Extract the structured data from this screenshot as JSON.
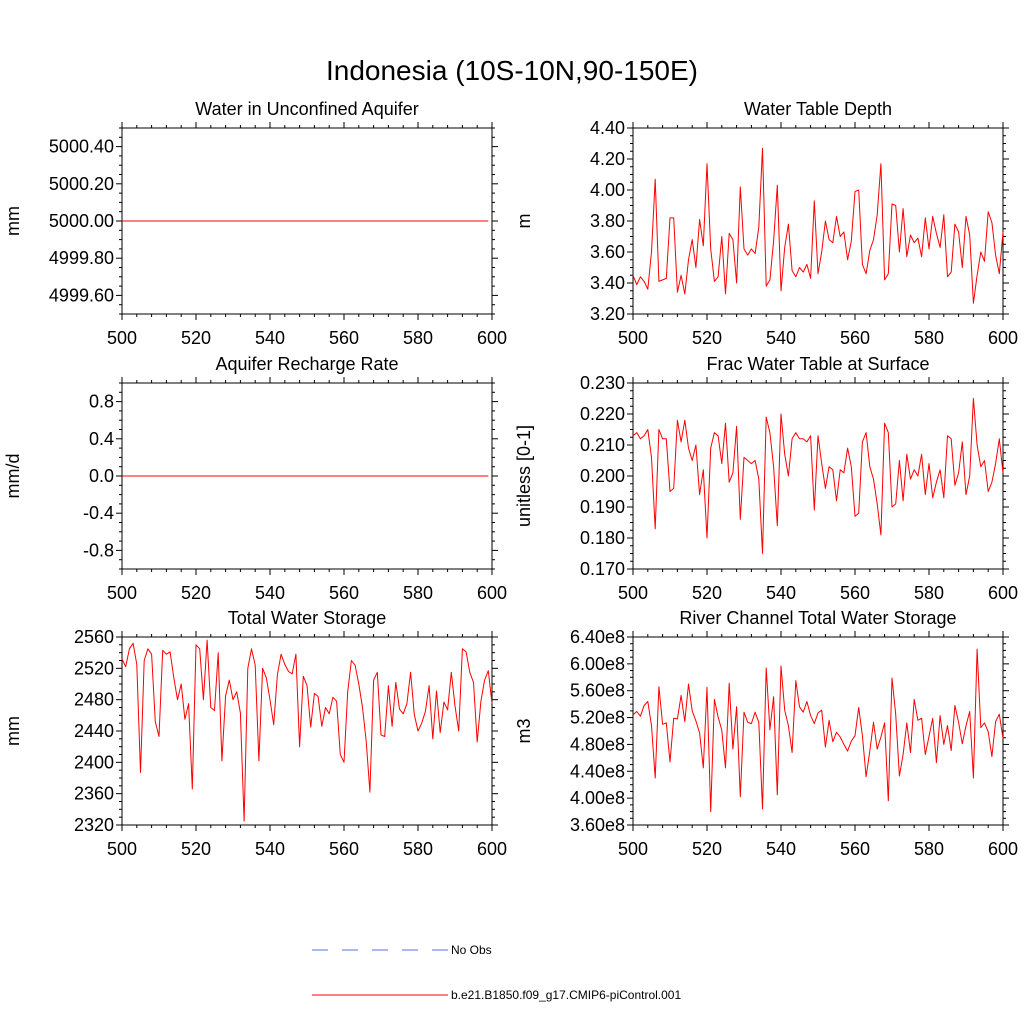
{
  "page_title": "Indonesia (10S-10N,90-150E)",
  "legend": [
    {
      "label": "No Obs",
      "color": "#5b6fd6",
      "style": "dashed"
    },
    {
      "label": "b.e21.B1850.f09_g17.CMIP6-piControl.001",
      "color": "#ff0000",
      "style": "solid"
    }
  ],
  "chart_data": [
    {
      "type": "line",
      "title": "Water in Unconfined Aquifer",
      "ylabel": "mm",
      "xlim": [
        500,
        600
      ],
      "ylim": [
        4999.5,
        5000.5
      ],
      "xticks": [
        500,
        520,
        540,
        560,
        580,
        600
      ],
      "yticks": [
        4999.6,
        4999.8,
        5000.0,
        5000.2,
        5000.4
      ],
      "ytick_labels": [
        "4999.60",
        "4999.80",
        "5000.00",
        "5000.20",
        "5000.40"
      ],
      "series": [
        {
          "name": "b.e21.B1850.f09_g17.CMIP6-piControl.001",
          "x_start": 500,
          "x_step": 1,
          "values": [
            5000,
            5000,
            5000,
            5000,
            5000,
            5000,
            5000,
            5000,
            5000,
            5000,
            5000,
            5000,
            5000,
            5000,
            5000,
            5000,
            5000,
            5000,
            5000,
            5000,
            5000,
            5000,
            5000,
            5000,
            5000,
            5000,
            5000,
            5000,
            5000,
            5000,
            5000,
            5000,
            5000,
            5000,
            5000,
            5000,
            5000,
            5000,
            5000,
            5000,
            5000,
            5000,
            5000,
            5000,
            5000,
            5000,
            5000,
            5000,
            5000,
            5000,
            5000,
            5000,
            5000,
            5000,
            5000,
            5000,
            5000,
            5000,
            5000,
            5000,
            5000,
            5000,
            5000,
            5000,
            5000,
            5000,
            5000,
            5000,
            5000,
            5000,
            5000,
            5000,
            5000,
            5000,
            5000,
            5000,
            5000,
            5000,
            5000,
            5000,
            5000,
            5000,
            5000,
            5000,
            5000,
            5000,
            5000,
            5000,
            5000,
            5000,
            5000,
            5000,
            5000,
            5000,
            5000,
            5000,
            5000,
            5000,
            5000,
            5000
          ]
        }
      ]
    },
    {
      "type": "line",
      "title": "Water Table Depth",
      "ylabel": "m",
      "xlim": [
        500,
        600
      ],
      "ylim": [
        3.2,
        4.4
      ],
      "xticks": [
        500,
        520,
        540,
        560,
        580,
        600
      ],
      "yticks": [
        3.2,
        3.4,
        3.6,
        3.8,
        4.0,
        4.2,
        4.4
      ],
      "ytick_labels": [
        "3.20",
        "3.40",
        "3.60",
        "3.80",
        "4.00",
        "4.20",
        "4.40"
      ],
      "series": [
        {
          "name": "b.e21.B1850.f09_g17.CMIP6-piControl.001",
          "x_start": 500,
          "x_step": 1,
          "values": [
            3.45,
            3.39,
            3.44,
            3.41,
            3.36,
            3.6,
            4.07,
            3.41,
            3.42,
            3.43,
            3.82,
            3.82,
            3.34,
            3.45,
            3.33,
            3.55,
            3.68,
            3.5,
            3.81,
            3.64,
            4.17,
            3.62,
            3.41,
            3.44,
            3.7,
            3.33,
            3.72,
            3.68,
            3.4,
            4.02,
            3.62,
            3.58,
            3.62,
            3.59,
            3.76,
            4.27,
            3.38,
            3.42,
            3.67,
            4.03,
            3.35,
            3.63,
            3.78,
            3.48,
            3.44,
            3.5,
            3.47,
            3.52,
            3.43,
            3.93,
            3.46,
            3.6,
            3.8,
            3.68,
            3.66,
            3.83,
            3.7,
            3.73,
            3.55,
            3.67,
            3.99,
            4.0,
            3.52,
            3.46,
            3.61,
            3.68,
            3.84,
            4.17,
            3.42,
            3.46,
            3.91,
            3.9,
            3.6,
            3.88,
            3.57,
            3.71,
            3.66,
            3.69,
            3.57,
            3.82,
            3.62,
            3.83,
            3.72,
            3.63,
            3.84,
            3.44,
            3.47,
            3.78,
            3.73,
            3.5,
            3.83,
            3.71,
            3.27,
            3.45,
            3.6,
            3.54,
            3.86,
            3.79,
            3.58,
            3.46,
            3.73
          ]
        }
      ]
    },
    {
      "type": "line",
      "title": "Aquifer Recharge Rate",
      "ylabel": "mm/d",
      "xlim": [
        500,
        600
      ],
      "ylim": [
        -1.0,
        1.0
      ],
      "xticks": [
        500,
        520,
        540,
        560,
        580,
        600
      ],
      "yticks": [
        -0.8,
        -0.4,
        0.0,
        0.4,
        0.8
      ],
      "ytick_labels": [
        "-0.8",
        "-0.4",
        "0.0",
        "0.4",
        "0.8"
      ],
      "series": [
        {
          "name": "b.e21.B1850.f09_g17.CMIP6-piControl.001",
          "x_start": 500,
          "x_step": 1,
          "values": [
            0,
            0,
            0,
            0,
            0,
            0,
            0,
            0,
            0,
            0,
            0,
            0,
            0,
            0,
            0,
            0,
            0,
            0,
            0,
            0,
            0,
            0,
            0,
            0,
            0,
            0,
            0,
            0,
            0,
            0,
            0,
            0,
            0,
            0,
            0,
            0,
            0,
            0,
            0,
            0,
            0,
            0,
            0,
            0,
            0,
            0,
            0,
            0,
            0,
            0,
            0,
            0,
            0,
            0,
            0,
            0,
            0,
            0,
            0,
            0,
            0,
            0,
            0,
            0,
            0,
            0,
            0,
            0,
            0,
            0,
            0,
            0,
            0,
            0,
            0,
            0,
            0,
            0,
            0,
            0,
            0,
            0,
            0,
            0,
            0,
            0,
            0,
            0,
            0,
            0,
            0,
            0,
            0,
            0,
            0,
            0,
            0,
            0,
            0,
            0
          ]
        }
      ]
    },
    {
      "type": "line",
      "title": "Frac Water Table at Surface",
      "ylabel": "unitless [0-1]",
      "xlim": [
        500,
        600
      ],
      "ylim": [
        0.17,
        0.23
      ],
      "xticks": [
        500,
        520,
        540,
        560,
        580,
        600
      ],
      "yticks": [
        0.17,
        0.18,
        0.19,
        0.2,
        0.21,
        0.22,
        0.23
      ],
      "ytick_labels": [
        "0.170",
        "0.180",
        "0.190",
        "0.200",
        "0.210",
        "0.220",
        "0.230"
      ],
      "series": [
        {
          "name": "b.e21.B1850.f09_g17.CMIP6-piControl.001",
          "x_start": 500,
          "x_step": 1,
          "values": [
            0.213,
            0.214,
            0.212,
            0.213,
            0.215,
            0.206,
            0.183,
            0.215,
            0.212,
            0.212,
            0.195,
            0.196,
            0.218,
            0.211,
            0.218,
            0.209,
            0.205,
            0.21,
            0.194,
            0.202,
            0.18,
            0.209,
            0.214,
            0.213,
            0.204,
            0.217,
            0.198,
            0.201,
            0.216,
            0.186,
            0.206,
            0.205,
            0.204,
            0.205,
            0.199,
            0.175,
            0.219,
            0.214,
            0.203,
            0.184,
            0.22,
            0.207,
            0.2,
            0.212,
            0.214,
            0.212,
            0.212,
            0.211,
            0.213,
            0.189,
            0.213,
            0.204,
            0.196,
            0.203,
            0.202,
            0.192,
            0.202,
            0.201,
            0.209,
            0.203,
            0.187,
            0.188,
            0.211,
            0.214,
            0.203,
            0.199,
            0.191,
            0.181,
            0.217,
            0.214,
            0.19,
            0.191,
            0.205,
            0.192,
            0.207,
            0.199,
            0.202,
            0.2,
            0.207,
            0.194,
            0.204,
            0.193,
            0.198,
            0.202,
            0.193,
            0.213,
            0.212,
            0.197,
            0.201,
            0.211,
            0.194,
            0.2,
            0.225,
            0.21,
            0.203,
            0.205,
            0.195,
            0.198,
            0.204,
            0.212,
            0.201
          ]
        }
      ]
    },
    {
      "type": "line",
      "title": "Total Water Storage",
      "ylabel": "mm",
      "xlim": [
        500,
        600
      ],
      "ylim": [
        2320,
        2560
      ],
      "xticks": [
        500,
        520,
        540,
        560,
        580,
        600
      ],
      "yticks": [
        2320,
        2360,
        2400,
        2440,
        2480,
        2520,
        2560
      ],
      "ytick_labels": [
        "2320",
        "2360",
        "2400",
        "2440",
        "2480",
        "2520",
        "2560"
      ],
      "series": [
        {
          "name": "b.e21.B1850.f09_g17.CMIP6-piControl.001",
          "x_start": 500,
          "x_step": 1,
          "values": [
            2532,
            2522,
            2545,
            2552,
            2525,
            2387,
            2530,
            2545,
            2538,
            2452,
            2433,
            2543,
            2538,
            2541,
            2508,
            2480,
            2500,
            2455,
            2475,
            2366,
            2550,
            2545,
            2480,
            2556,
            2470,
            2466,
            2540,
            2402,
            2485,
            2505,
            2480,
            2490,
            2463,
            2325,
            2520,
            2545,
            2524,
            2402,
            2520,
            2508,
            2480,
            2448,
            2512,
            2538,
            2525,
            2516,
            2513,
            2538,
            2420,
            2510,
            2498,
            2445,
            2488,
            2484,
            2446,
            2470,
            2462,
            2483,
            2478,
            2410,
            2400,
            2490,
            2530,
            2524,
            2500,
            2470,
            2427,
            2362,
            2505,
            2515,
            2435,
            2433,
            2498,
            2446,
            2502,
            2468,
            2462,
            2475,
            2515,
            2461,
            2440,
            2450,
            2465,
            2498,
            2430,
            2491,
            2438,
            2477,
            2467,
            2515,
            2472,
            2440,
            2545,
            2541,
            2515,
            2502,
            2426,
            2478,
            2505,
            2517,
            2475
          ]
        }
      ]
    },
    {
      "type": "line",
      "title": "River Channel Total Water Storage",
      "ylabel": "m3",
      "xlim": [
        500,
        600
      ],
      "ylim": [
        360000000,
        640000000
      ],
      "xticks": [
        500,
        520,
        540,
        560,
        580,
        600
      ],
      "yticks": [
        360000000,
        400000000,
        440000000,
        480000000,
        520000000,
        560000000,
        600000000,
        640000000
      ],
      "ytick_labels": [
        "3.60e8",
        "4.00e8",
        "4.40e8",
        "4.80e8",
        "5.20e8",
        "5.60e8",
        "6.00e8",
        "6.40e8"
      ],
      "series": [
        {
          "name": "b.e21.B1850.f09_g17.CMIP6-piControl.001",
          "x_start": 500,
          "x_step": 1,
          "values": [
            524000000,
            529000000,
            522000000,
            538000000,
            544000000,
            508000000,
            430000000,
            566000000,
            510000000,
            512000000,
            454000000,
            519000000,
            518000000,
            553000000,
            514000000,
            570000000,
            530000000,
            515000000,
            497000000,
            445000000,
            565000000,
            380000000,
            547000000,
            521000000,
            501000000,
            445000000,
            571000000,
            473000000,
            536000000,
            402000000,
            528000000,
            513000000,
            511000000,
            528000000,
            513000000,
            384000000,
            594000000,
            502000000,
            551000000,
            405000000,
            597000000,
            531000000,
            508000000,
            468000000,
            575000000,
            536000000,
            528000000,
            544000000,
            523000000,
            511000000,
            527000000,
            531000000,
            476000000,
            516000000,
            484000000,
            498000000,
            491000000,
            480000000,
            470000000,
            485000000,
            493000000,
            535000000,
            493000000,
            432000000,
            470000000,
            513000000,
            473000000,
            491000000,
            512000000,
            396000000,
            579000000,
            525000000,
            433000000,
            465000000,
            512000000,
            468000000,
            547000000,
            516000000,
            519000000,
            465000000,
            492000000,
            519000000,
            453000000,
            523000000,
            480000000,
            508000000,
            471000000,
            538000000,
            513000000,
            481000000,
            508000000,
            529000000,
            430000000,
            622000000,
            505000000,
            512000000,
            499000000,
            462000000,
            514000000,
            525000000,
            489000000
          ]
        }
      ]
    }
  ]
}
